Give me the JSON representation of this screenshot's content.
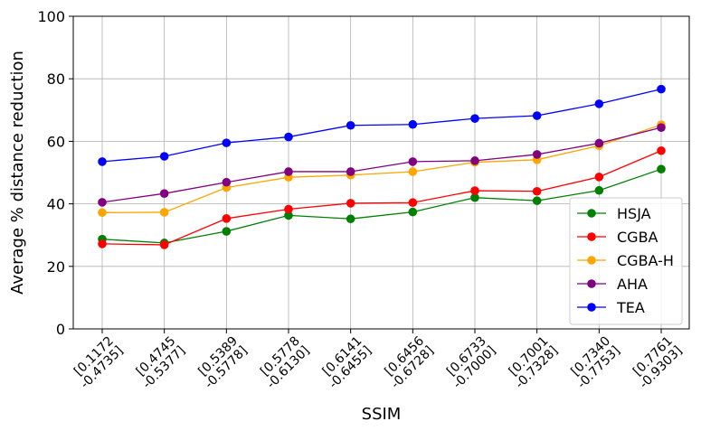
{
  "chart_data": {
    "type": "line",
    "xlabel": "SSIM",
    "ylabel": "Average % distance reduction",
    "ylim": [
      0,
      100
    ],
    "yticks": [
      0,
      20,
      40,
      60,
      80,
      100
    ],
    "grid": true,
    "legend_position": "lower-right",
    "categories": [
      [
        "[0.1172",
        "-0.4735]"
      ],
      [
        "[0.4745",
        "-0.5377]"
      ],
      [
        "[0.5389",
        "-0.5778]"
      ],
      [
        "[0.5778",
        "-0.6130]"
      ],
      [
        "[0.6141",
        "-0.6455]"
      ],
      [
        "[0.6456",
        "-0.6728]"
      ],
      [
        "[0.6733",
        "-0.7000]"
      ],
      [
        "[0.7001",
        "-0.7328]"
      ],
      [
        "[0.7340",
        "-0.7753]"
      ],
      [
        "[0.7761",
        "-0.9303]"
      ]
    ],
    "series": [
      {
        "name": "HSJA",
        "color": "#008000",
        "values": [
          28.7,
          27.5,
          31.2,
          36.3,
          35.2,
          37.4,
          42.0,
          41.0,
          44.3,
          51.1
        ]
      },
      {
        "name": "CGBA",
        "color": "#ff0000",
        "values": [
          27.2,
          26.9,
          35.3,
          38.3,
          40.2,
          40.4,
          44.2,
          44.0,
          48.6,
          57.0
        ]
      },
      {
        "name": "CGBA-H",
        "color": "#ffa500",
        "values": [
          37.2,
          37.3,
          45.2,
          48.5,
          49.2,
          50.3,
          53.3,
          54.1,
          58.6,
          65.3
        ]
      },
      {
        "name": "AHA",
        "color": "#800080",
        "values": [
          40.5,
          43.3,
          46.9,
          50.3,
          50.3,
          53.5,
          53.8,
          55.8,
          59.4,
          64.4
        ]
      },
      {
        "name": "TEA",
        "color": "#0000ff",
        "values": [
          53.5,
          55.2,
          59.5,
          61.4,
          65.1,
          65.4,
          67.3,
          68.2,
          72.0,
          76.7
        ]
      }
    ]
  }
}
